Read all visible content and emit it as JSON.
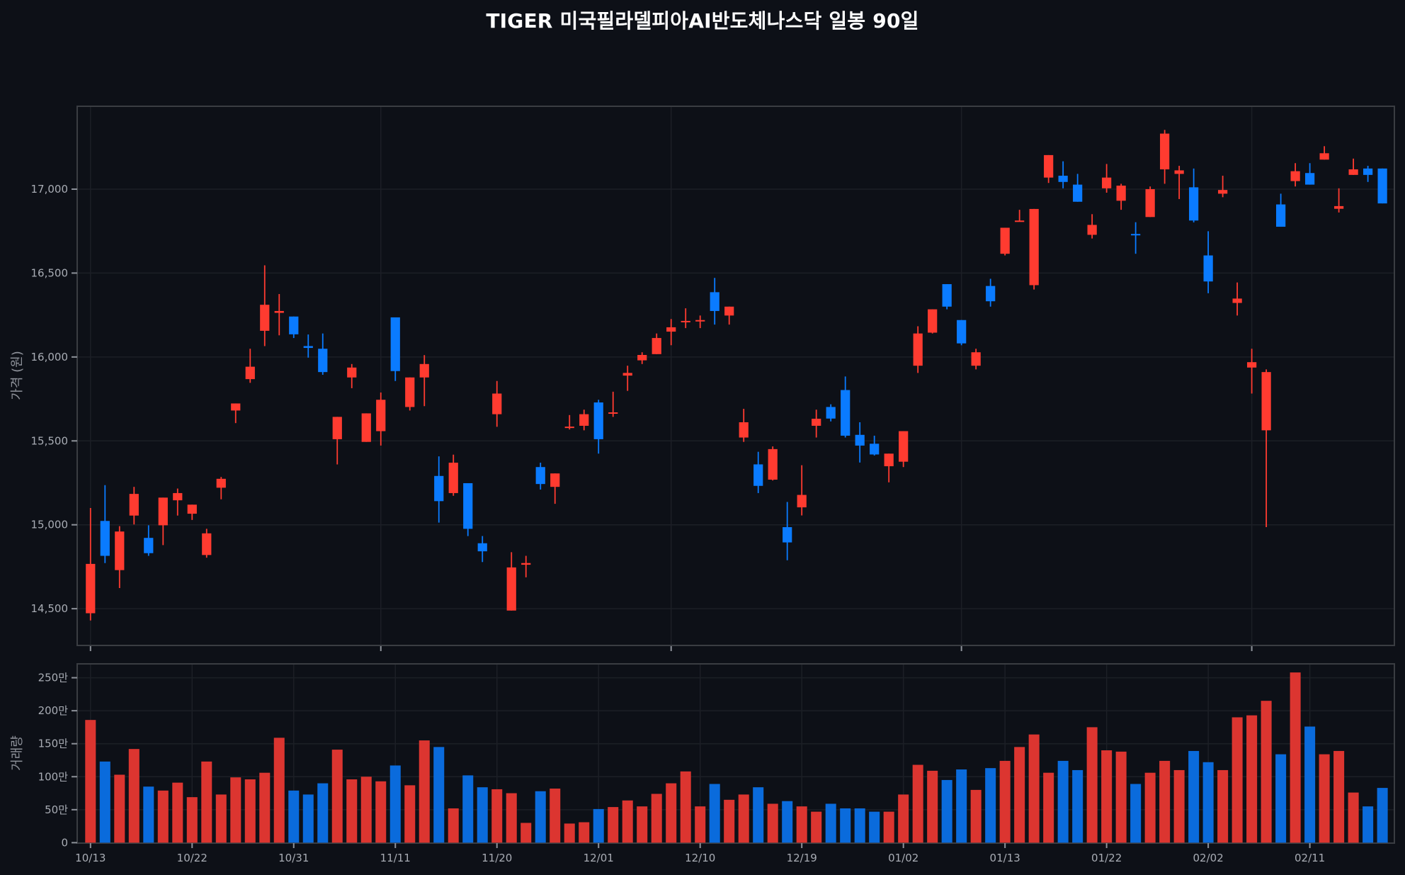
{
  "title": "TIGER 미국필라델피아AI반도체나스닥 일봉 90일",
  "colors": {
    "background": "#0d1017",
    "panel_border": "#3a3d42",
    "grid": "#1c1f26",
    "up": "#ff3b30",
    "down": "#0a7bff",
    "up_volume": "#dc3530",
    "down_volume": "#0a6bdc"
  },
  "price_panel": {
    "ylabel": "가격 (원)",
    "yticks": [
      14500,
      15000,
      15500,
      16000,
      16500,
      17000
    ],
    "ytick_labels": [
      "14,500",
      "15,000",
      "15,500",
      "16,000",
      "16,500",
      "17,000"
    ],
    "ylim": [
      14270,
      17480
    ],
    "xtick_indices": [
      0,
      20,
      40,
      60,
      80
    ]
  },
  "volume_panel": {
    "ylabel": "거래량",
    "yticks": [
      0,
      50,
      100,
      150,
      200,
      250
    ],
    "ytick_labels": [
      "0",
      "50만",
      "100만",
      "150만",
      "200만",
      "250만"
    ],
    "ylim": [
      0,
      270
    ],
    "xtick_indices": [
      0,
      7,
      14,
      21,
      28,
      35,
      42,
      49,
      56,
      63,
      70,
      77,
      84
    ],
    "xtick_labels": [
      "10/13",
      "10/22",
      "10/31",
      "11/11",
      "11/20",
      "12/01",
      "12/10",
      "12/19",
      "01/02",
      "01/13",
      "01/22",
      "02/02",
      "02/11"
    ]
  },
  "chart_data": {
    "type": "candlestick",
    "title": "TIGER 미국필라델피아AI반도체나스닥 일봉 90일",
    "ylabel_price": "가격 (원)",
    "ylabel_volume": "거래량",
    "volume_unit": "만",
    "x_tick_labels": [
      "10/13",
      "10/22",
      "10/31",
      "11/11",
      "11/20",
      "12/01",
      "12/10",
      "12/19",
      "01/02",
      "01/13",
      "01/22",
      "02/02",
      "02/11"
    ],
    "ohlc": [
      [
        14473,
        15100,
        14430,
        14767
      ],
      [
        15023,
        15236,
        14772,
        14815
      ],
      [
        14730,
        14992,
        14623,
        14960
      ],
      [
        15055,
        15226,
        15002,
        15184
      ],
      [
        14922,
        14997,
        14815,
        14831
      ],
      [
        14997,
        15162,
        14879,
        15162
      ],
      [
        15146,
        15216,
        15055,
        15189
      ],
      [
        15066,
        15120,
        15029,
        15120
      ],
      [
        14820,
        14976,
        14804,
        14949
      ],
      [
        15221,
        15285,
        15152,
        15274
      ],
      [
        15681,
        15723,
        15606,
        15723
      ],
      [
        15868,
        16049,
        15846,
        15942
      ],
      [
        16156,
        16546,
        16065,
        16311
      ],
      [
        16263,
        16375,
        16129,
        16274
      ],
      [
        16241,
        16241,
        16113,
        16135
      ],
      [
        16065,
        16134,
        15996,
        16054
      ],
      [
        16049,
        16140,
        15894,
        15910
      ],
      [
        15510,
        15643,
        15360,
        15643
      ],
      [
        15878,
        15958,
        15814,
        15937
      ],
      [
        15494,
        15664,
        15494,
        15664
      ],
      [
        15558,
        15788,
        15472,
        15745
      ],
      [
        16236,
        16236,
        15857,
        15916
      ],
      [
        15702,
        15878,
        15681,
        15878
      ],
      [
        15878,
        16011,
        15707,
        15958
      ],
      [
        15291,
        15408,
        15013,
        15141
      ],
      [
        15189,
        15418,
        15173,
        15370
      ],
      [
        15248,
        15248,
        14933,
        14976
      ],
      [
        14890,
        14933,
        14778,
        14842
      ],
      [
        15659,
        15857,
        15584,
        15782
      ],
      [
        14489,
        14837,
        14489,
        14746
      ],
      [
        14762,
        14815,
        14687,
        14772
      ],
      [
        15344,
        15370,
        15210,
        15243
      ],
      [
        15226,
        15306,
        15125,
        15306
      ],
      [
        15579,
        15654,
        15568,
        15585
      ],
      [
        15590,
        15686,
        15563,
        15659
      ],
      [
        15729,
        15745,
        15424,
        15510
      ],
      [
        15665,
        15793,
        15643,
        15670
      ],
      [
        15889,
        15948,
        15798,
        15905
      ],
      [
        15980,
        16028,
        15958,
        16012
      ],
      [
        16017,
        16140,
        16017,
        16113
      ],
      [
        16151,
        16226,
        16070,
        16177
      ],
      [
        16209,
        16290,
        16172,
        16215
      ],
      [
        16215,
        16247,
        16172,
        16220
      ],
      [
        16386,
        16471,
        16193,
        16274
      ],
      [
        16247,
        16300,
        16193,
        16300
      ],
      [
        15520,
        15691,
        15494,
        15611
      ],
      [
        15360,
        15435,
        15189,
        15232
      ],
      [
        15269,
        15467,
        15264,
        15451
      ],
      [
        14986,
        15136,
        14789,
        14895
      ],
      [
        15104,
        15355,
        15056,
        15178
      ],
      [
        15590,
        15686,
        15520,
        15632
      ],
      [
        15702,
        15718,
        15616,
        15633
      ],
      [
        15803,
        15884,
        15520,
        15531
      ],
      [
        15536,
        15611,
        15371,
        15472
      ],
      [
        15483,
        15531,
        15413,
        15419
      ],
      [
        15349,
        15424,
        15253,
        15424
      ],
      [
        15376,
        15558,
        15344,
        15558
      ],
      [
        15948,
        16183,
        15905,
        16140
      ],
      [
        16145,
        16284,
        16140,
        16284
      ],
      [
        16434,
        16434,
        16284,
        16300
      ],
      [
        16220,
        16220,
        16070,
        16081
      ],
      [
        15948,
        16049,
        15926,
        16028
      ],
      [
        16423,
        16466,
        16300,
        16332
      ],
      [
        16615,
        16770,
        16605,
        16770
      ],
      [
        16808,
        16877,
        16808,
        16813
      ],
      [
        16428,
        16882,
        16402,
        16882
      ],
      [
        17069,
        17203,
        17037,
        17203
      ],
      [
        17080,
        17166,
        17005,
        17043
      ],
      [
        17027,
        17091,
        16925,
        16925
      ],
      [
        16728,
        16851,
        16706,
        16787
      ],
      [
        17005,
        17150,
        16979,
        17069
      ],
      [
        16931,
        17032,
        16877,
        17021
      ],
      [
        16733,
        16803,
        16615,
        16728
      ],
      [
        16834,
        17016,
        16834,
        17000
      ],
      [
        17118,
        17353,
        17032,
        17331
      ],
      [
        17091,
        17139,
        16941,
        17112
      ],
      [
        17011,
        17123,
        16802,
        16813
      ],
      [
        16605,
        16749,
        16380,
        16450
      ],
      [
        16973,
        17080,
        16952,
        16995
      ],
      [
        16322,
        16444,
        16247,
        16348
      ],
      [
        15937,
        16049,
        15782,
        15969
      ],
      [
        15563,
        15926,
        14986,
        15910
      ],
      [
        16909,
        16973,
        16776,
        16776
      ],
      [
        17048,
        17155,
        17016,
        17107
      ],
      [
        17096,
        17155,
        17027,
        17027
      ],
      [
        17176,
        17256,
        17176,
        17214
      ],
      [
        16883,
        17005,
        16861,
        16899
      ],
      [
        17085,
        17182,
        17085,
        17118
      ],
      [
        17123,
        17139,
        17043,
        17085
      ],
      [
        17123,
        17123,
        16915,
        16915
      ]
    ],
    "volume_man": [
      186,
      123,
      103,
      142,
      85,
      79,
      91,
      69,
      123,
      73,
      99,
      96,
      106,
      159,
      79,
      73,
      90,
      141,
      96,
      100,
      93,
      117,
      87,
      155,
      145,
      52,
      102,
      84,
      81,
      75,
      30,
      78,
      82,
      29,
      31,
      51,
      54,
      64,
      55,
      74,
      90,
      108,
      55,
      89,
      65,
      73,
      84,
      59,
      63,
      55,
      47,
      59,
      52,
      52,
      47,
      47,
      73,
      118,
      109,
      95,
      111,
      80,
      113,
      124,
      145,
      164,
      106,
      124,
      110,
      175,
      140,
      138,
      89,
      106,
      124,
      110,
      139,
      122,
      110,
      190,
      193,
      215,
      134,
      258,
      176,
      134,
      139,
      76,
      55,
      83
    ]
  }
}
